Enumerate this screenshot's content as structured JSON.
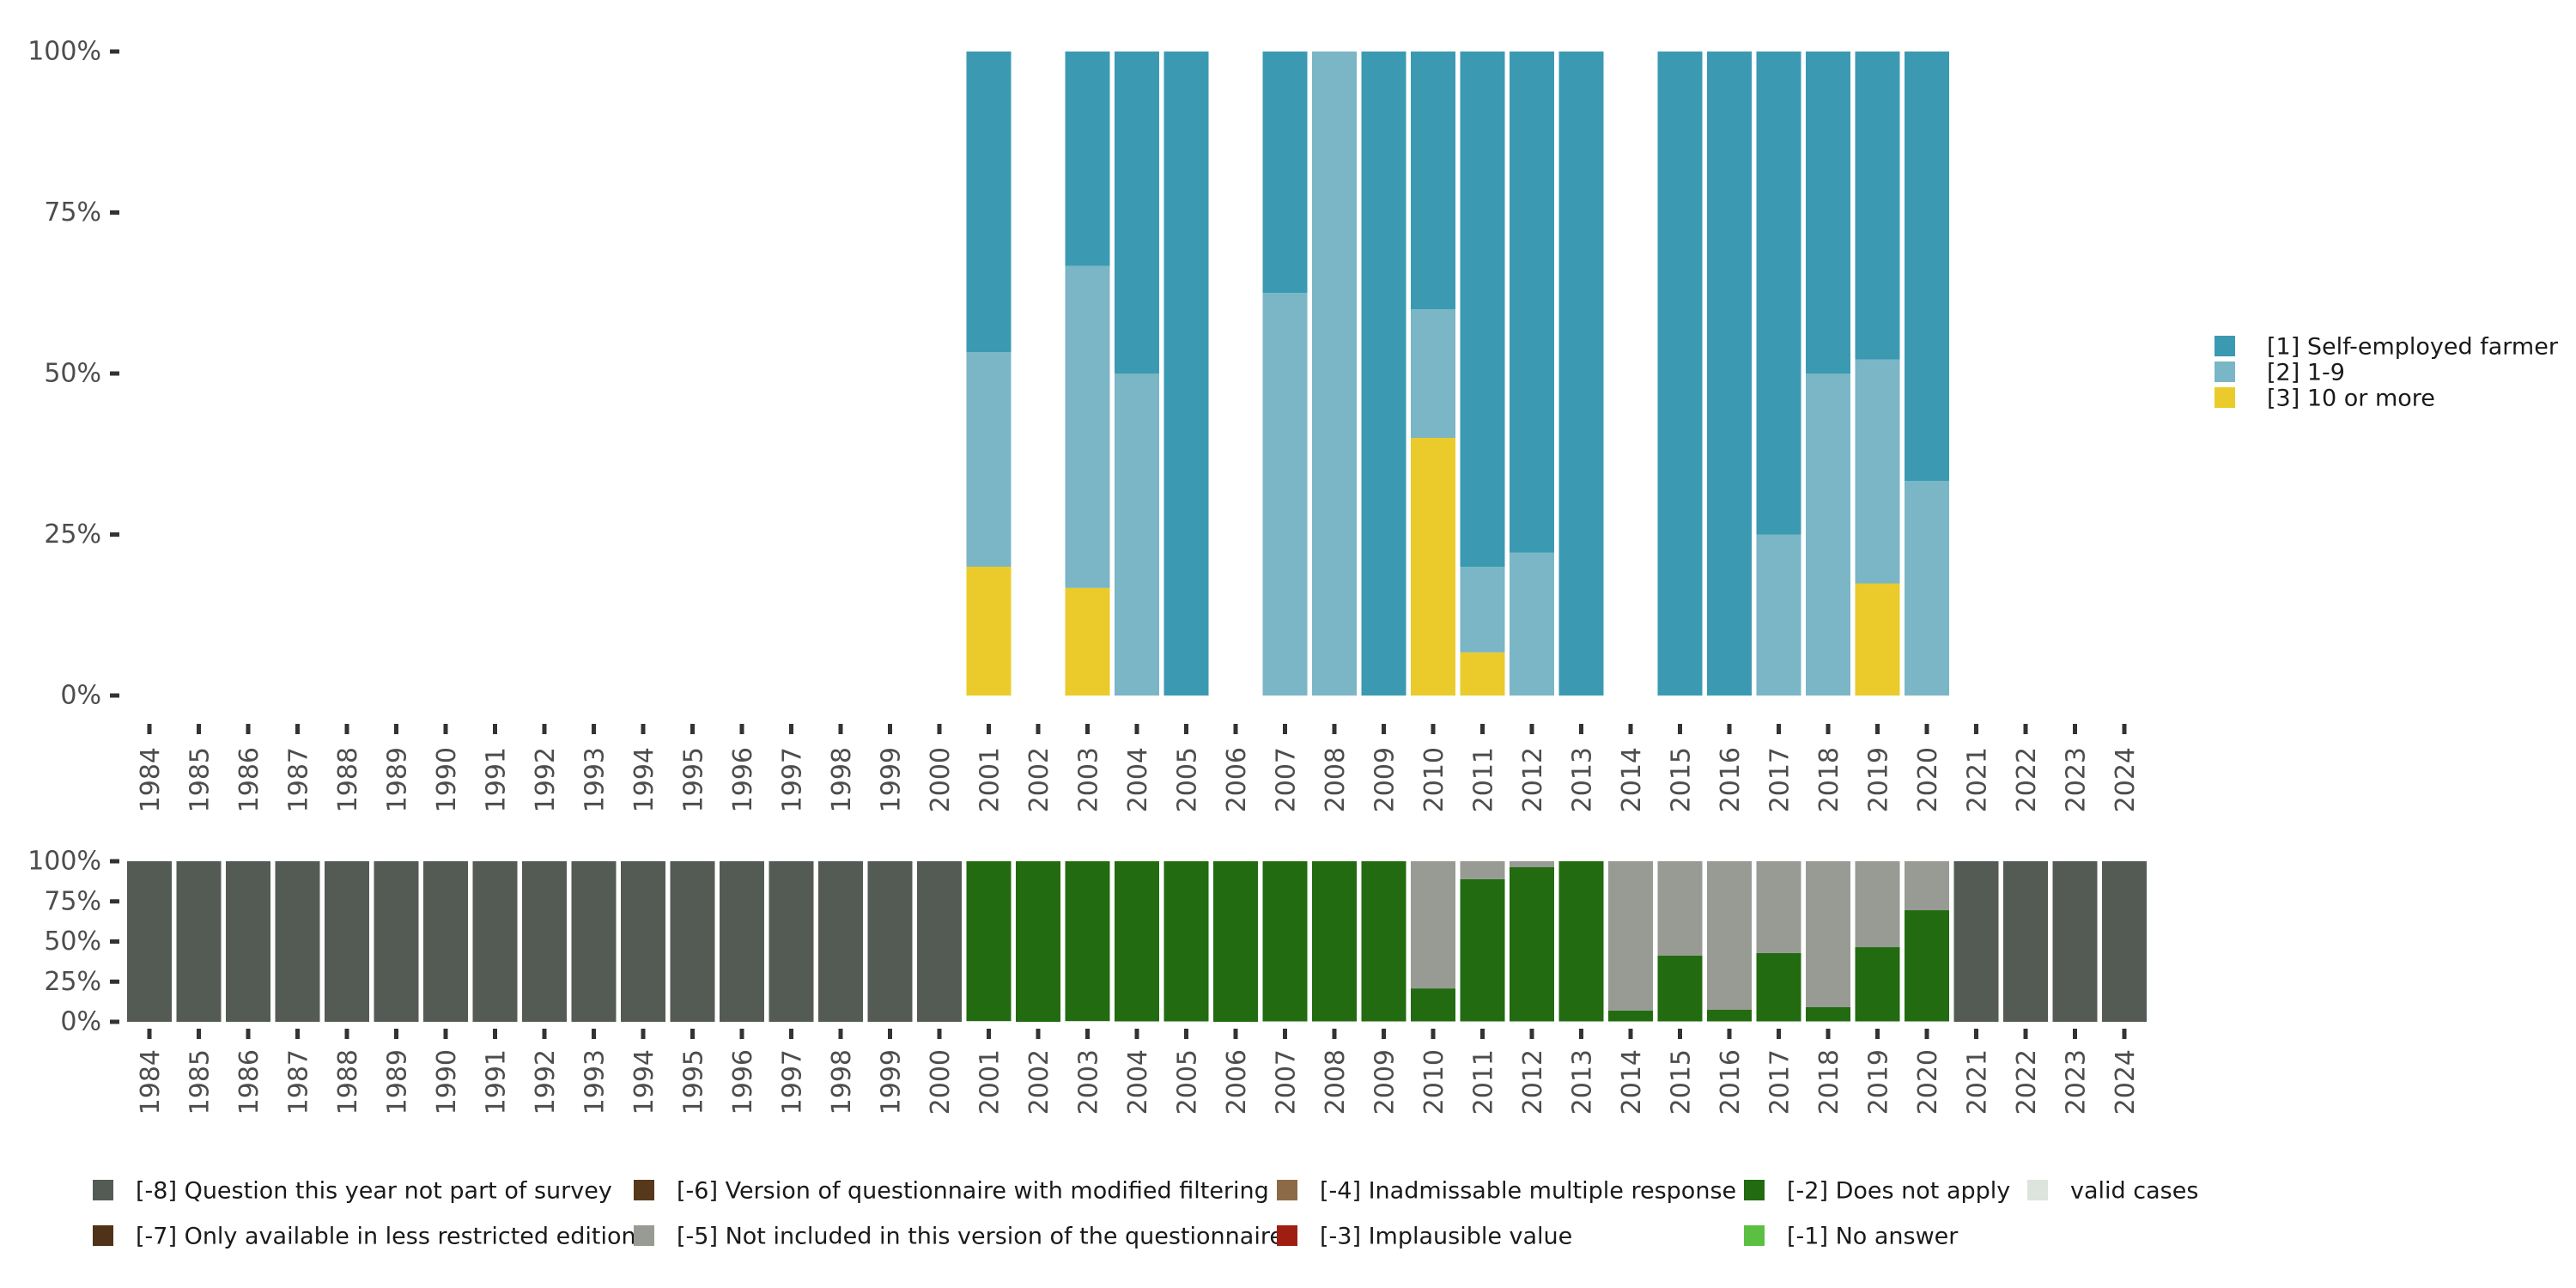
{
  "chart_data": [
    {
      "type": "bar",
      "stacked": true,
      "normalized": true,
      "title": "",
      "xlabel": "",
      "ylabel": "",
      "ylim": [
        0,
        100
      ],
      "yticks": [
        "0%",
        "25%",
        "50%",
        "75%",
        "100%"
      ],
      "categories": [
        "1984",
        "1985",
        "1986",
        "1987",
        "1988",
        "1989",
        "1990",
        "1991",
        "1992",
        "1993",
        "1994",
        "1995",
        "1996",
        "1997",
        "1998",
        "1999",
        "2000",
        "2001",
        "2002",
        "2003",
        "2004",
        "2005",
        "2006",
        "2007",
        "2008",
        "2009",
        "2010",
        "2011",
        "2012",
        "2013",
        "2014",
        "2015",
        "2016",
        "2017",
        "2018",
        "2019",
        "2020",
        "2021",
        "2022",
        "2023",
        "2024"
      ],
      "legend_position": "right",
      "series": [
        {
          "name": "[3] 10 or more",
          "color": "#eacb2b",
          "values": [
            null,
            null,
            null,
            null,
            null,
            null,
            null,
            null,
            null,
            null,
            null,
            null,
            null,
            null,
            null,
            null,
            null,
            20,
            null,
            16.7,
            0,
            0,
            null,
            0,
            0,
            0,
            40,
            6.7,
            0,
            0,
            null,
            0,
            0,
            0,
            0,
            17.4,
            0,
            null,
            null,
            null,
            null
          ]
        },
        {
          "name": "[2] 1-9",
          "color": "#7ab6c5",
          "values": [
            null,
            null,
            null,
            null,
            null,
            null,
            null,
            null,
            null,
            null,
            null,
            null,
            null,
            null,
            null,
            null,
            null,
            33.3,
            null,
            50,
            50,
            0,
            null,
            62.5,
            100,
            0,
            20,
            13.3,
            22.2,
            0,
            null,
            0,
            0,
            25,
            50,
            34.8,
            33.3,
            null,
            null,
            null,
            null
          ]
        },
        {
          "name": "[1] Self-employed farmer",
          "color": "#3b9ab2",
          "values": [
            null,
            null,
            null,
            null,
            null,
            null,
            null,
            null,
            null,
            null,
            null,
            null,
            null,
            null,
            null,
            null,
            null,
            46.7,
            null,
            33.3,
            50,
            100,
            null,
            37.5,
            0,
            100,
            40,
            80,
            77.8,
            100,
            null,
            100,
            100,
            75,
            50,
            47.8,
            66.7,
            null,
            null,
            null,
            null
          ]
        }
      ]
    },
    {
      "type": "bar",
      "stacked": true,
      "normalized": true,
      "title": "",
      "xlabel": "",
      "ylabel": "",
      "ylim": [
        0,
        100
      ],
      "yticks": [
        "0%",
        "25%",
        "50%",
        "75%",
        "100%"
      ],
      "categories": [
        "1984",
        "1985",
        "1986",
        "1987",
        "1988",
        "1989",
        "1990",
        "1991",
        "1992",
        "1993",
        "1994",
        "1995",
        "1996",
        "1997",
        "1998",
        "1999",
        "2000",
        "2001",
        "2002",
        "2003",
        "2004",
        "2005",
        "2006",
        "2007",
        "2008",
        "2009",
        "2010",
        "2011",
        "2012",
        "2013",
        "2014",
        "2015",
        "2016",
        "2017",
        "2018",
        "2019",
        "2020",
        "2021",
        "2022",
        "2023",
        "2024"
      ],
      "legend_position": "bottom",
      "series": [
        {
          "name": "valid cases",
          "color": "#dde3dd",
          "values": [
            0,
            0,
            0,
            0,
            0,
            0,
            0,
            0,
            0,
            0,
            0,
            0,
            0,
            0,
            0,
            0,
            0,
            0.5,
            0,
            0.5,
            0.3,
            0.3,
            0,
            0.3,
            0.3,
            0.3,
            0.3,
            0.3,
            0.3,
            0.3,
            0.3,
            0.3,
            0.3,
            0.3,
            0.3,
            0.3,
            0.3,
            0,
            0,
            0,
            0
          ]
        },
        {
          "name": "[-1] No answer",
          "color": "#5bbf42",
          "values": [
            0,
            0,
            0,
            0,
            0,
            0,
            0,
            0,
            0,
            0,
            0,
            0,
            0,
            0,
            0,
            0,
            0,
            0,
            0,
            0,
            0,
            0,
            0,
            0,
            0,
            0,
            0,
            0,
            0,
            0,
            0,
            0,
            0,
            0,
            0,
            0,
            0,
            0,
            0,
            0,
            0
          ]
        },
        {
          "name": "[-2] Does not apply",
          "color": "#226b10",
          "values": [
            0,
            0,
            0,
            0,
            0,
            0,
            0,
            0,
            0,
            0,
            0,
            0,
            0,
            0,
            0,
            0,
            0,
            99.5,
            100,
            99.5,
            99.7,
            99.7,
            100,
            99.7,
            99.7,
            99.7,
            20.5,
            88.6,
            96.1,
            99.7,
            6.7,
            40.9,
            7.2,
            42.5,
            8.8,
            46.2,
            69.2,
            0,
            0,
            0,
            0
          ]
        },
        {
          "name": "[-3] Implausible value",
          "color": "#a01d12",
          "values": [
            0,
            0,
            0,
            0,
            0,
            0,
            0,
            0,
            0,
            0,
            0,
            0,
            0,
            0,
            0,
            0,
            0,
            0,
            0,
            0,
            0,
            0,
            0,
            0,
            0,
            0,
            0,
            0,
            0,
            0,
            0,
            0,
            0,
            0,
            0,
            0,
            0,
            0,
            0,
            0,
            0
          ]
        },
        {
          "name": "[-4] Inadmissable multiple response",
          "color": "#8c6a48",
          "values": [
            0,
            0,
            0,
            0,
            0,
            0,
            0,
            0,
            0,
            0,
            0,
            0,
            0,
            0,
            0,
            0,
            0,
            0,
            0,
            0,
            0,
            0,
            0,
            0,
            0,
            0,
            0,
            0,
            0,
            0,
            0,
            0,
            0,
            0,
            0,
            0,
            0,
            0,
            0,
            0,
            0
          ]
        },
        {
          "name": "[-5] Not included in this version of the questionnaire",
          "color": "#979b94",
          "values": [
            0,
            0,
            0,
            0,
            0,
            0,
            0,
            0,
            0,
            0,
            0,
            0,
            0,
            0,
            0,
            0,
            0,
            0,
            0,
            0,
            0,
            0,
            0,
            0,
            0,
            0,
            79.2,
            11.1,
            3.6,
            0,
            93,
            58.8,
            92.5,
            57.2,
            90.9,
            53.5,
            30.5,
            0,
            0,
            0,
            0
          ]
        },
        {
          "name": "[-6] Version of questionnaire with modified filtering",
          "color": "#56381a",
          "values": [
            0,
            0,
            0,
            0,
            0,
            0,
            0,
            0,
            0,
            0,
            0,
            0,
            0,
            0,
            0,
            0,
            0,
            0,
            0,
            0,
            0,
            0,
            0,
            0,
            0,
            0,
            0,
            0,
            0,
            0,
            0,
            0,
            0,
            0,
            0,
            0,
            0,
            0,
            0,
            0,
            0
          ]
        },
        {
          "name": "[-7] Only available in less restricted edition",
          "color": "#4f3218",
          "values": [
            0,
            0,
            0,
            0,
            0,
            0,
            0,
            0,
            0,
            0,
            0,
            0,
            0,
            0,
            0,
            0,
            0,
            0,
            0,
            0,
            0,
            0,
            0,
            0,
            0,
            0,
            0,
            0,
            0,
            0,
            0,
            0,
            0,
            0,
            0,
            0,
            0,
            0,
            0,
            0,
            0
          ]
        },
        {
          "name": "[-8] Question this year not part of survey",
          "color": "#545b54",
          "values": [
            100,
            100,
            100,
            100,
            100,
            100,
            100,
            100,
            100,
            100,
            100,
            100,
            100,
            100,
            100,
            100,
            100,
            0,
            0,
            0,
            0,
            0,
            0,
            0,
            0,
            0,
            0,
            0,
            0,
            0,
            0,
            0,
            0,
            0,
            0,
            0,
            0,
            100,
            100,
            100,
            100
          ]
        }
      ]
    }
  ],
  "top_legend": [
    {
      "label": "[1] Self-employed farmer",
      "color": "#3b9ab2"
    },
    {
      "label": "[2] 1-9",
      "color": "#7ab6c5"
    },
    {
      "label": "[3] 10 or more",
      "color": "#eacb2b"
    }
  ],
  "bottom_legend": [
    {
      "label": "[-8] Question this year not part of survey",
      "color": "#545b54"
    },
    {
      "label": "[-7] Only available in less restricted edition",
      "color": "#4f3218"
    },
    {
      "label": "[-6] Version of questionnaire with modified filtering",
      "color": "#56381a"
    },
    {
      "label": "[-5] Not included in this version of the questionnaire",
      "color": "#979b94"
    },
    {
      "label": "[-4] Inadmissable multiple response",
      "color": "#8c6a48"
    },
    {
      "label": "[-3] Implausible value",
      "color": "#a01d12"
    },
    {
      "label": "[-2] Does not apply",
      "color": "#226b10"
    },
    {
      "label": "[-1] No answer",
      "color": "#5bbf42"
    },
    {
      "label": "valid cases",
      "color": "#dde3dd"
    }
  ]
}
